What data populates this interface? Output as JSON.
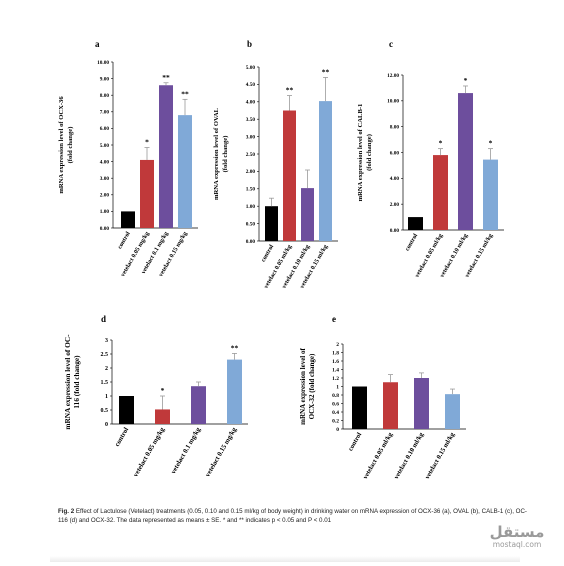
{
  "chart_data": [
    {
      "type": "bar",
      "panel": "a",
      "ylabel": [
        "mRNA expression level of OCX-36",
        "(fold change)"
      ],
      "ylim": [
        0,
        10
      ],
      "yticks": [
        "0.00",
        "1.00",
        "2.00",
        "3.00",
        "4.00",
        "5.00",
        "6.00",
        "7.00",
        "8.00",
        "9.00",
        "10.00"
      ],
      "categories": [
        "control",
        "vetelact 0.05 mg/kg",
        "vetelact 0.1 mg/kg",
        "vetelact 0.15 mg/kg"
      ],
      "values": [
        1.0,
        4.1,
        8.6,
        6.8
      ],
      "errors": [
        0,
        0.75,
        0.15,
        0.95
      ],
      "significance": [
        "",
        "*",
        "**",
        "**"
      ]
    },
    {
      "type": "bar",
      "panel": "b",
      "ylabel": [
        "mRNA expression level of OVAL",
        "(fold change)"
      ],
      "ylim": [
        0,
        5
      ],
      "yticks": [
        "0.00",
        "0.50",
        "1.00",
        "1.50",
        "2.00",
        "2.50",
        "3.00",
        "3.50",
        "4.00",
        "4.50",
        "5.00"
      ],
      "categories": [
        "control",
        "vetelact 0.05 ml/kg",
        "vetelact 0.10 ml/kg",
        "vetelact 0.15 ml/kg"
      ],
      "values": [
        1.0,
        3.75,
        1.52,
        4.02
      ],
      "errors": [
        0.23,
        0.43,
        0.52,
        0.68
      ],
      "significance": [
        "",
        "**",
        "",
        "**"
      ]
    },
    {
      "type": "bar",
      "panel": "c",
      "ylabel": [
        "mRNA expression level of CALB-1",
        "(fold change)"
      ],
      "ylim": [
        0,
        12
      ],
      "yticks": [
        "0.00",
        "2.00",
        "4.00",
        "6.00",
        "8.00",
        "10.00",
        "12.00"
      ],
      "categories": [
        "control",
        "vetelact 0.05 ml/kg",
        "vetelact 0.10 ml/kg",
        "vetelact 0.15 ml/kg"
      ],
      "values": [
        1.0,
        5.8,
        10.6,
        5.45
      ],
      "errors": [
        0,
        0.5,
        0.55,
        0.85
      ],
      "significance": [
        "",
        "*",
        "*",
        "*"
      ]
    },
    {
      "type": "bar",
      "panel": "d",
      "ylabel": [
        "mRNA expression level of OC-",
        "116 (fold change)"
      ],
      "ylim": [
        0,
        3
      ],
      "yticks": [
        "0",
        "0.5",
        "1",
        "1.5",
        "2",
        "2.5",
        "3"
      ],
      "categories": [
        "control",
        "vetelact 0.05 mg/kg",
        "vetelact 0.1 mg/kg",
        "vetelact 0.15 mg/kg"
      ],
      "values": [
        1.0,
        0.52,
        1.35,
        2.3
      ],
      "errors": [
        0,
        0.48,
        0.15,
        0.22
      ],
      "significance": [
        "",
        "*",
        "",
        "**"
      ]
    },
    {
      "type": "bar",
      "panel": "e",
      "ylabel": [
        "mRNA expression level of",
        "OCX-32 (fold change)"
      ],
      "ylim": [
        0,
        2
      ],
      "yticks": [
        "0",
        "0.2",
        "0.4",
        "0.6",
        "0.8",
        "1",
        "1.2",
        "1.4",
        "1.6",
        "1.8",
        "2"
      ],
      "categories": [
        "control",
        "vetelact 0.05 ml/kg",
        "vetelact 0.10 ml/kg",
        "vetelact 0.15 ml/kg"
      ],
      "values": [
        1.0,
        1.1,
        1.2,
        0.82
      ],
      "errors": [
        0,
        0.18,
        0.12,
        0.12
      ],
      "significance": [
        "",
        "",
        "",
        ""
      ]
    }
  ],
  "colors": {
    "control": "#000000",
    "dose1": "#c0393a",
    "dose2": "#6d4e9d",
    "dose3": "#80a9d7",
    "error_bar": "#9a9a9a"
  },
  "caption": {
    "label": "Fig. 2",
    "text": "Effect of Lactulose (Vetelact) treatments (0.05, 0.10 and 0.15 ml/kg of body weight) in drinking water on mRNA expression of OCX-36 (a), OVAL (b), CALB-1 (c), OC-116 (d) and OCX-32. The data represented as means ± SE. * and ** indicates p < 0.05 and P < 0.01"
  },
  "watermark": {
    "arabic": "مستقل",
    "latin": "mostaql.com"
  }
}
